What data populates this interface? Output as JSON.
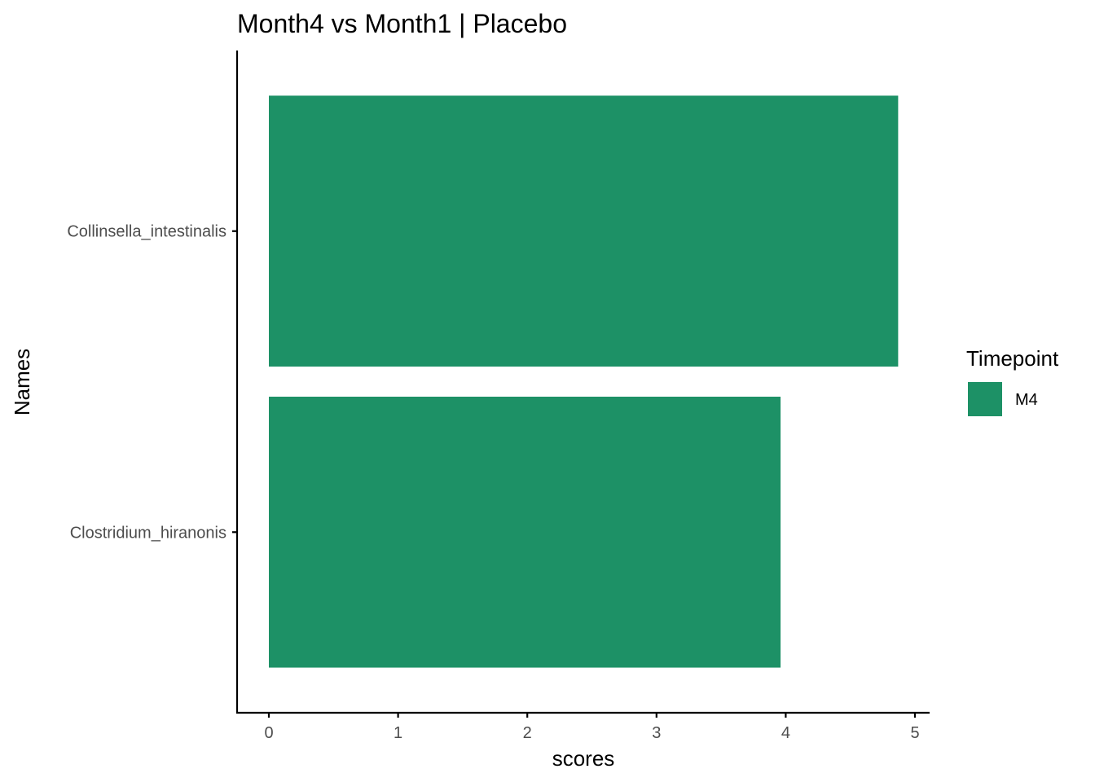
{
  "chart_data": {
    "type": "bar",
    "orientation": "horizontal",
    "title": "Month4 vs Month1 | Placebo",
    "xlabel": "scores",
    "ylabel": "Names",
    "xlim": [
      0,
      5
    ],
    "x_ticks": [
      0,
      1,
      2,
      3,
      4,
      5
    ],
    "categories": [
      "Collinsella_intestinalis",
      "Clostridium_hiranonis"
    ],
    "series": [
      {
        "name": "M4",
        "color": "#1d9166",
        "values": [
          4.87,
          3.96
        ]
      }
    ],
    "legend": {
      "title": "Timepoint",
      "placement": "right"
    },
    "grid": false
  }
}
